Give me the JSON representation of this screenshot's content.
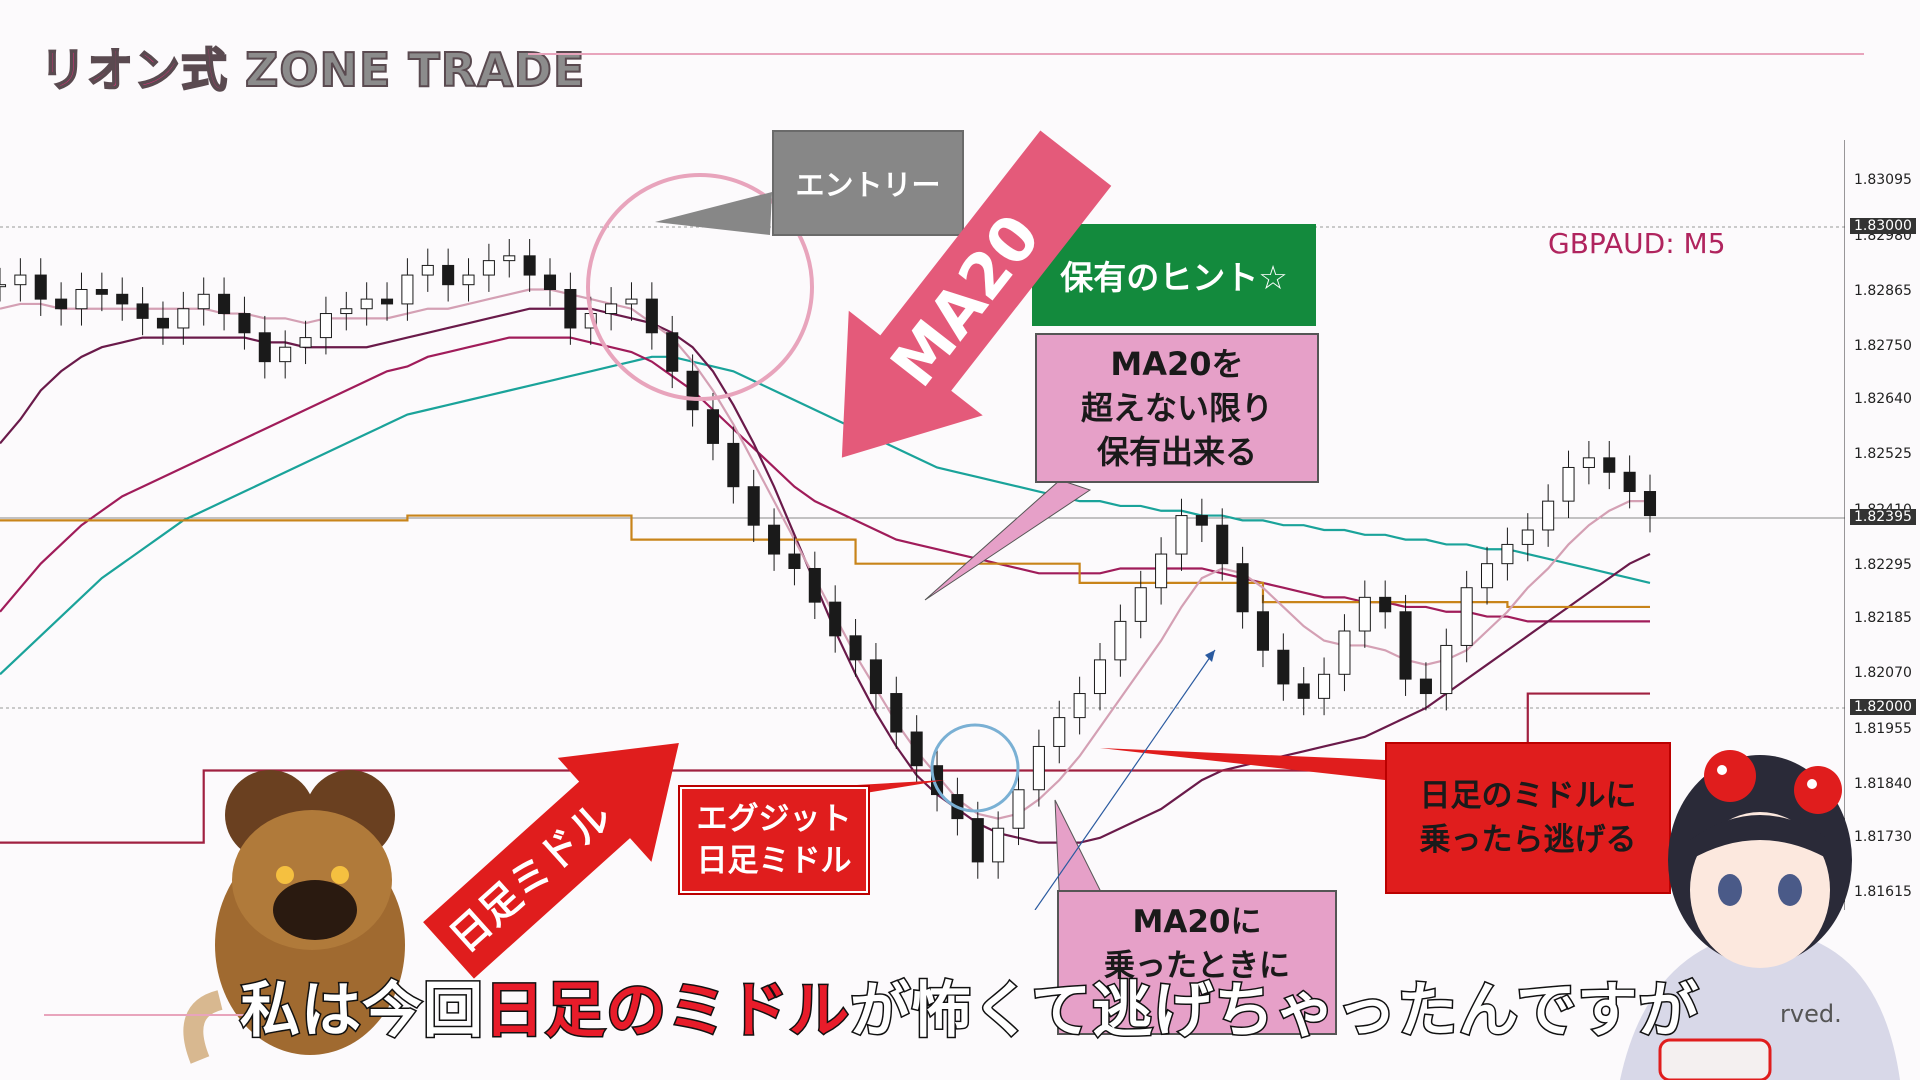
{
  "brand": {
    "jp": "リオン式",
    "en": "ZONE TRADE"
  },
  "pair_label": "GBPAUD: M5",
  "callouts": {
    "entry": "エントリー",
    "hint": "保有のヒント☆",
    "hold": "MA20を\n超えない限り\n保有出来る",
    "exit": "エグジット\n日足ミドル",
    "flee": "日足のミドルに\n乗ったら逃げる",
    "rode": "MA20に\n乗ったときに",
    "arrow_ma20": "MA20",
    "arrow_daily_mid": "日足ミドル"
  },
  "subtitle": {
    "pre": "私は今回",
    "highlight": "日足のミドル",
    "post": "が怖くて逃げちゃったんですが"
  },
  "footer_fragment": "rved.",
  "colors": {
    "ma_short": "#d4a0b4",
    "ma_mid": "#6a1a4a",
    "ma_long": "#a01c5a",
    "ma_teal": "#1aa39a",
    "gold": "#c8841a",
    "daily_mid": "#a02040",
    "candle": "#1a1a1a",
    "accent_red": "#e01d1d",
    "accent_pink": "#e6a0c8",
    "callout_green": "#138a3d"
  },
  "chart_data": {
    "type": "line",
    "y_ticks": [
      "1.83095",
      "1.82980",
      "1.82865",
      "1.82750",
      "1.82640",
      "1.82525",
      "1.82410",
      "1.82295",
      "1.82185",
      "1.82070",
      "1.81955",
      "1.81840",
      "1.81730",
      "1.81615"
    ],
    "ylim": [
      1.8158,
      1.8316
    ],
    "price_tags": [
      "1.83000",
      "1.82395",
      "1.82000"
    ],
    "hlines": [
      1.83,
      1.82395,
      1.82
    ],
    "price_close": [
      1.8288,
      1.829,
      1.8285,
      1.8283,
      1.8287,
      1.8286,
      1.8284,
      1.8281,
      1.8279,
      1.8283,
      1.8286,
      1.8282,
      1.8278,
      1.8272,
      1.8275,
      1.8277,
      1.8282,
      1.8283,
      1.8285,
      1.8284,
      1.829,
      1.8292,
      1.8288,
      1.829,
      1.8293,
      1.8294,
      1.829,
      1.8287,
      1.8279,
      1.8282,
      1.8284,
      1.8285,
      1.8278,
      1.827,
      1.8262,
      1.8255,
      1.8246,
      1.8238,
      1.8232,
      1.8229,
      1.8222,
      1.8215,
      1.821,
      1.8203,
      1.8195,
      1.8188,
      1.8182,
      1.8177,
      1.8168,
      1.8175,
      1.8183,
      1.8192,
      1.8198,
      1.8203,
      1.821,
      1.8218,
      1.8225,
      1.8232,
      1.824,
      1.8238,
      1.823,
      1.822,
      1.8212,
      1.8205,
      1.8202,
      1.8207,
      1.8216,
      1.8223,
      1.822,
      1.8206,
      1.8203,
      1.8213,
      1.8225,
      1.823,
      1.8234,
      1.8237,
      1.8243,
      1.825,
      1.8252,
      1.8249,
      1.8245,
      1.824
    ],
    "ma20": [
      1.8283,
      1.8284,
      1.8284,
      1.8283,
      1.8283,
      1.8283,
      1.8283,
      1.8283,
      1.8283,
      1.8283,
      1.8283,
      1.8282,
      1.8282,
      1.8281,
      1.8281,
      1.828,
      1.8281,
      1.8281,
      1.8281,
      1.8281,
      1.8282,
      1.8283,
      1.8283,
      1.8284,
      1.8285,
      1.8286,
      1.8287,
      1.8287,
      1.8286,
      1.8285,
      1.8284,
      1.8283,
      1.828,
      1.8277,
      1.8272,
      1.8266,
      1.8259,
      1.8251,
      1.8243,
      1.8235,
      1.8227,
      1.8219,
      1.8211,
      1.8204,
      1.8197,
      1.8191,
      1.8186,
      1.8181,
      1.8178,
      1.8177,
      1.8178,
      1.8181,
      1.8185,
      1.819,
      1.8196,
      1.8202,
      1.8208,
      1.8214,
      1.8221,
      1.8227,
      1.8229,
      1.8228,
      1.8225,
      1.8221,
      1.8217,
      1.8214,
      1.8213,
      1.8213,
      1.8212,
      1.821,
      1.8209,
      1.821,
      1.8212,
      1.8216,
      1.822,
      1.8225,
      1.8229,
      1.8234,
      1.8238,
      1.8241,
      1.8243,
      1.8243
    ],
    "ma_purple": [
      1.8255,
      1.826,
      1.8266,
      1.827,
      1.8273,
      1.8275,
      1.8276,
      1.8277,
      1.8277,
      1.8277,
      1.8277,
      1.8277,
      1.8277,
      1.8276,
      1.8276,
      1.8275,
      1.8275,
      1.8275,
      1.8275,
      1.8276,
      1.8277,
      1.8278,
      1.8279,
      1.828,
      1.8281,
      1.8282,
      1.8283,
      1.8283,
      1.8283,
      1.8283,
      1.8282,
      1.8281,
      1.828,
      1.8278,
      1.8275,
      1.827,
      1.8263,
      1.8255,
      1.8246,
      1.8236,
      1.8226,
      1.8216,
      1.8207,
      1.8199,
      1.8192,
      1.8186,
      1.8182,
      1.8179,
      1.8176,
      1.8174,
      1.8173,
      1.8172,
      1.8172,
      1.8172,
      1.8173,
      1.8175,
      1.8177,
      1.8179,
      1.8182,
      1.8185,
      1.8187,
      1.8188,
      1.8189,
      1.819,
      1.8191,
      1.8192,
      1.8193,
      1.8194,
      1.8196,
      1.8198,
      1.82,
      1.8203,
      1.8206,
      1.8209,
      1.8212,
      1.8215,
      1.8218,
      1.8221,
      1.8224,
      1.8227,
      1.823,
      1.8232
    ],
    "ma_magenta": [
      1.822,
      1.8225,
      1.823,
      1.8234,
      1.8238,
      1.8241,
      1.8244,
      1.8246,
      1.8248,
      1.825,
      1.8252,
      1.8254,
      1.8256,
      1.8258,
      1.826,
      1.8262,
      1.8264,
      1.8266,
      1.8268,
      1.827,
      1.8271,
      1.8273,
      1.8274,
      1.8275,
      1.8276,
      1.8277,
      1.8277,
      1.8277,
      1.8277,
      1.8276,
      1.8275,
      1.8274,
      1.8272,
      1.8269,
      1.8266,
      1.8262,
      1.8258,
      1.8254,
      1.825,
      1.8246,
      1.8243,
      1.8241,
      1.8239,
      1.8237,
      1.8235,
      1.8234,
      1.8233,
      1.8232,
      1.8231,
      1.823,
      1.8229,
      1.8228,
      1.8228,
      1.8228,
      1.8228,
      1.8229,
      1.8229,
      1.8229,
      1.8229,
      1.8229,
      1.8228,
      1.8227,
      1.8226,
      1.8225,
      1.8224,
      1.8223,
      1.8223,
      1.8222,
      1.8222,
      1.8221,
      1.8221,
      1.822,
      1.822,
      1.8219,
      1.8219,
      1.8218,
      1.8218,
      1.8218,
      1.8218,
      1.8218,
      1.8218,
      1.8218
    ],
    "ma_teal": [
      1.8207,
      1.8211,
      1.8215,
      1.8219,
      1.8223,
      1.8227,
      1.823,
      1.8233,
      1.8236,
      1.8239,
      1.8241,
      1.8243,
      1.8245,
      1.8247,
      1.8249,
      1.8251,
      1.8253,
      1.8255,
      1.8257,
      1.8259,
      1.8261,
      1.8262,
      1.8263,
      1.8264,
      1.8265,
      1.8266,
      1.8267,
      1.8268,
      1.8269,
      1.827,
      1.8271,
      1.8272,
      1.8273,
      1.8273,
      1.8272,
      1.8271,
      1.827,
      1.8268,
      1.8266,
      1.8264,
      1.8262,
      1.826,
      1.8258,
      1.8256,
      1.8254,
      1.8252,
      1.825,
      1.8249,
      1.8248,
      1.8247,
      1.8246,
      1.8245,
      1.8244,
      1.8243,
      1.8243,
      1.8242,
      1.8242,
      1.8241,
      1.8241,
      1.824,
      1.824,
      1.8239,
      1.8239,
      1.8238,
      1.8238,
      1.8237,
      1.8237,
      1.8236,
      1.8236,
      1.8235,
      1.8235,
      1.8234,
      1.8234,
      1.8233,
      1.8233,
      1.8232,
      1.8231,
      1.823,
      1.8229,
      1.8228,
      1.8227,
      1.8226
    ],
    "gold_steps": [
      [
        0,
        1.8239
      ],
      [
        20,
        1.824
      ],
      [
        31,
        1.8235
      ],
      [
        42,
        1.823
      ],
      [
        53,
        1.8226
      ],
      [
        62,
        1.8222
      ],
      [
        74,
        1.8221
      ],
      [
        81,
        1.8221
      ]
    ],
    "daily_mid_steps": [
      [
        0,
        1.8172
      ],
      [
        10,
        1.8187
      ],
      [
        74,
        1.8185
      ],
      [
        75,
        1.8203
      ],
      [
        81,
        1.8203
      ]
    ]
  }
}
